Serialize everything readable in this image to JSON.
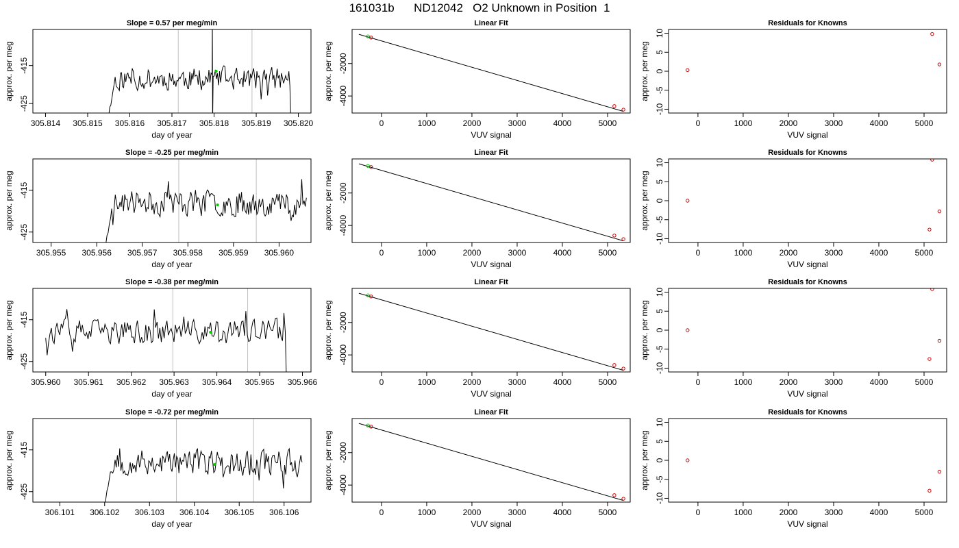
{
  "title": "161031b      ND12042   O2 Unknown in Position  1",
  "colors": {
    "trace": "#000000",
    "vline": "#bebebe",
    "green": "#00cc00",
    "red": "#cc0000",
    "fitline": "#000000"
  },
  "chart_data": [
    {
      "type": "line",
      "panel": "timeseries-1",
      "title": "Slope =  0.57  per meg/min",
      "xlabel": "day of year",
      "ylabel": "approx. per meg",
      "xlim": [
        305.8137,
        305.8203
      ],
      "ylim": [
        -427.5,
        -405.5
      ],
      "xticks": [
        305.814,
        305.815,
        305.816,
        305.817,
        305.818,
        305.819,
        305.82
      ],
      "xtick_labels": [
        "305.814",
        "305.815",
        "305.816",
        "305.817",
        "305.818",
        "305.819",
        "305.820"
      ],
      "yticks": [
        -415,
        -425
      ],
      "ytick_labels": [
        "-415",
        "-425"
      ],
      "vlines": [
        305.81715,
        305.8189
      ],
      "trace": {
        "x_start": 305.8155,
        "x_end": 305.8198,
        "base": -418.5,
        "amp": 1.5,
        "seed": 11,
        "start_from": -428,
        "end_to": -428,
        "spike_at": 305.81795,
        "spike_to": [
          -402,
          -430
        ]
      },
      "green_point": {
        "x": 305.81805,
        "y": -416.5
      }
    },
    {
      "type": "scatter",
      "panel": "fit-1",
      "title": "Linear Fit",
      "xlabel": "VUV signal",
      "ylabel": "approx. per meg",
      "xlim": [
        -650,
        5500
      ],
      "ylim": [
        -5050,
        100
      ],
      "xticks": [
        0,
        1000,
        2000,
        3000,
        4000,
        5000
      ],
      "xtick_labels": [
        "0",
        "1000",
        "2000",
        "3000",
        "4000",
        "5000"
      ],
      "yticks": [
        -2000,
        -4000
      ],
      "ytick_labels": [
        "-2000",
        "-4000"
      ],
      "fit_line": {
        "x": [
          -500,
          5350
        ],
        "y": [
          -200,
          -4950
        ]
      },
      "points_red": [
        {
          "x": -230,
          "y": -400
        },
        {
          "x": 5150,
          "y": -4620
        },
        {
          "x": 5350,
          "y": -4840
        }
      ],
      "points_green": [
        {
          "x": -300,
          "y": -330
        }
      ]
    },
    {
      "type": "scatter",
      "panel": "resid-1",
      "title": "Residuals for Knowns",
      "xlabel": "VUV signal",
      "ylabel": "approx. per meg",
      "xlim": [
        -650,
        5500
      ],
      "ylim": [
        -11,
        11
      ],
      "xticks": [
        0,
        1000,
        2000,
        3000,
        4000,
        5000
      ],
      "xtick_labels": [
        "0",
        "1000",
        "2000",
        "3000",
        "4000",
        "5000"
      ],
      "yticks": [
        10,
        5,
        0,
        -5,
        -10
      ],
      "ytick_labels": [
        "10",
        "5",
        "0",
        "-5",
        "-10"
      ],
      "points_red": [
        {
          "x": -230,
          "y": 0.3
        },
        {
          "x": 5180,
          "y": 9.8
        },
        {
          "x": 5340,
          "y": 1.8
        }
      ]
    },
    {
      "type": "line",
      "panel": "timeseries-2",
      "title": "Slope =  -0.25  per meg/min",
      "xlabel": "day of year",
      "ylabel": "approx. per meg",
      "xlim": [
        305.9546,
        305.9607
      ],
      "ylim": [
        -427.5,
        -407.5
      ],
      "xticks": [
        305.955,
        305.956,
        305.957,
        305.958,
        305.959,
        305.96
      ],
      "xtick_labels": [
        "305.955",
        "305.956",
        "305.957",
        "305.958",
        "305.959",
        "305.960"
      ],
      "yticks": [
        -415,
        -425
      ],
      "ytick_labels": [
        "-415",
        "-425"
      ],
      "vlines": [
        305.9578,
        305.9595
      ],
      "trace": {
        "x_start": 305.9562,
        "x_end": 305.9606,
        "base": -418,
        "amp": 1.6,
        "seed": 23,
        "start_from": -428,
        "end_to": null,
        "spike_at": null
      },
      "green_point": {
        "x": 305.95865,
        "y": -418.5
      }
    },
    {
      "type": "scatter",
      "panel": "fit-2",
      "title": "Linear Fit",
      "xlabel": "VUV signal",
      "ylabel": "approx. per meg",
      "xlim": [
        -650,
        5500
      ],
      "ylim": [
        -5050,
        100
      ],
      "xticks": [
        0,
        1000,
        2000,
        3000,
        4000,
        5000
      ],
      "xtick_labels": [
        "0",
        "1000",
        "2000",
        "3000",
        "4000",
        "5000"
      ],
      "yticks": [
        -2000,
        -4000
      ],
      "ytick_labels": [
        "-2000",
        "-4000"
      ],
      "fit_line": {
        "x": [
          -500,
          5350
        ],
        "y": [
          -200,
          -4950
        ]
      },
      "points_red": [
        {
          "x": -230,
          "y": -400
        },
        {
          "x": 5150,
          "y": -4620
        },
        {
          "x": 5350,
          "y": -4840
        }
      ],
      "points_green": [
        {
          "x": -300,
          "y": -330
        }
      ]
    },
    {
      "type": "scatter",
      "panel": "resid-2",
      "title": "Residuals for Knowns",
      "xlabel": "VUV signal",
      "ylabel": "approx. per meg",
      "xlim": [
        -650,
        5500
      ],
      "ylim": [
        -11,
        11
      ],
      "xticks": [
        0,
        1000,
        2000,
        3000,
        4000,
        5000
      ],
      "xtick_labels": [
        "0",
        "1000",
        "2000",
        "3000",
        "4000",
        "5000"
      ],
      "yticks": [
        10,
        5,
        0,
        -5,
        -10
      ],
      "ytick_labels": [
        "10",
        "5",
        "0",
        "-5",
        "-10"
      ],
      "points_red": [
        {
          "x": -230,
          "y": 0.0
        },
        {
          "x": 5180,
          "y": 10.8
        },
        {
          "x": 5340,
          "y": -2.8
        },
        {
          "x": 5120,
          "y": -7.6
        }
      ]
    },
    {
      "type": "line",
      "panel": "timeseries-3",
      "title": "Slope =  -0.38  per meg/min",
      "xlabel": "day of year",
      "ylabel": "approx. per meg",
      "xlim": [
        305.9597,
        305.9662
      ],
      "ylim": [
        -427.5,
        -407.5
      ],
      "xticks": [
        305.96,
        305.961,
        305.962,
        305.963,
        305.964,
        305.965,
        305.966
      ],
      "xtick_labels": [
        "305.960",
        "305.961",
        "305.962",
        "305.963",
        "305.964",
        "305.965",
        "305.966"
      ],
      "yticks": [
        -415,
        -425
      ],
      "ytick_labels": [
        "-415",
        "-425"
      ],
      "vlines": [
        305.96297,
        305.96472
      ],
      "trace": {
        "x_start": 305.96,
        "x_end": 305.9656,
        "base": -418,
        "amp": 1.5,
        "seed": 37,
        "start_from": null,
        "end_to": -428,
        "spike_at": null
      },
      "green_point": {
        "x": 305.96385,
        "y": -418
      }
    },
    {
      "type": "scatter",
      "panel": "fit-3",
      "title": "Linear Fit",
      "xlabel": "VUV signal",
      "ylabel": "approx. per meg",
      "xlim": [
        -650,
        5500
      ],
      "ylim": [
        -5050,
        100
      ],
      "xticks": [
        0,
        1000,
        2000,
        3000,
        4000,
        5000
      ],
      "xtick_labels": [
        "0",
        "1000",
        "2000",
        "3000",
        "4000",
        "5000"
      ],
      "yticks": [
        -2000,
        -4000
      ],
      "ytick_labels": [
        "-2000",
        "-4000"
      ],
      "fit_line": {
        "x": [
          -500,
          5350
        ],
        "y": [
          -200,
          -4950
        ]
      },
      "points_red": [
        {
          "x": -230,
          "y": -400
        },
        {
          "x": 5150,
          "y": -4620
        },
        {
          "x": 5350,
          "y": -4840
        }
      ],
      "points_green": [
        {
          "x": -300,
          "y": -330
        }
      ]
    },
    {
      "type": "scatter",
      "panel": "resid-3",
      "title": "Residuals for Knowns",
      "xlabel": "VUV signal",
      "ylabel": "approx. per meg",
      "xlim": [
        -650,
        5500
      ],
      "ylim": [
        -11,
        11
      ],
      "xticks": [
        0,
        1000,
        2000,
        3000,
        4000,
        5000
      ],
      "xtick_labels": [
        "0",
        "1000",
        "2000",
        "3000",
        "4000",
        "5000"
      ],
      "yticks": [
        10,
        5,
        0,
        -5,
        -10
      ],
      "ytick_labels": [
        "10",
        "5",
        "0",
        "-5",
        "-10"
      ],
      "points_red": [
        {
          "x": -230,
          "y": 0.0
        },
        {
          "x": 5180,
          "y": 10.8
        },
        {
          "x": 5340,
          "y": -2.8
        },
        {
          "x": 5120,
          "y": -7.6
        }
      ]
    },
    {
      "type": "line",
      "panel": "timeseries-4",
      "title": "Slope =  -0.72  per meg/min",
      "xlabel": "day of year",
      "ylabel": "approx. per meg",
      "xlim": [
        306.1004,
        306.1066
      ],
      "ylim": [
        -427.5,
        -407.5
      ],
      "xticks": [
        306.101,
        306.102,
        306.103,
        306.104,
        306.105,
        306.106
      ],
      "xtick_labels": [
        "306.101",
        "306.102",
        "306.103",
        "306.104",
        "306.105",
        "306.106"
      ],
      "yticks": [
        -415,
        -425
      ],
      "ytick_labels": [
        "-415",
        "-425"
      ],
      "vlines": [
        306.1036,
        306.10532
      ],
      "trace": {
        "x_start": 306.102,
        "x_end": 306.1064,
        "base": -418,
        "amp": 1.6,
        "seed": 53,
        "start_from": -428,
        "end_to": null,
        "spike_at": null
      },
      "green_point": {
        "x": 306.10445,
        "y": -418.5
      }
    },
    {
      "type": "scatter",
      "panel": "fit-4",
      "title": "Linear Fit",
      "xlabel": "VUV signal",
      "ylabel": "approx. per meg",
      "xlim": [
        -650,
        5500
      ],
      "ylim": [
        -5050,
        100
      ],
      "xticks": [
        0,
        1000,
        2000,
        3000,
        4000,
        5000
      ],
      "xtick_labels": [
        "0",
        "1000",
        "2000",
        "3000",
        "4000",
        "5000"
      ],
      "yticks": [
        -2000,
        -4000
      ],
      "ytick_labels": [
        "-2000",
        "-4000"
      ],
      "fit_line": {
        "x": [
          -500,
          5350
        ],
        "y": [
          -200,
          -4950
        ]
      },
      "points_red": [
        {
          "x": -230,
          "y": -400
        },
        {
          "x": 5150,
          "y": -4620
        },
        {
          "x": 5350,
          "y": -4840
        }
      ],
      "points_green": [
        {
          "x": -300,
          "y": -330
        }
      ]
    },
    {
      "type": "scatter",
      "panel": "resid-4",
      "title": "Residuals for Knowns",
      "xlabel": "VUV signal",
      "ylabel": "approx. per meg",
      "xlim": [
        -650,
        5500
      ],
      "ylim": [
        -11,
        11
      ],
      "xticks": [
        0,
        1000,
        2000,
        3000,
        4000,
        5000
      ],
      "xtick_labels": [
        "0",
        "1000",
        "2000",
        "3000",
        "4000",
        "5000"
      ],
      "yticks": [
        10,
        5,
        0,
        -5,
        -10
      ],
      "ytick_labels": [
        "10",
        "5",
        "0",
        "-5",
        "-10"
      ],
      "points_red": [
        {
          "x": -230,
          "y": 0.0
        },
        {
          "x": 5120,
          "y": -8.0
        },
        {
          "x": 5340,
          "y": -3.0
        }
      ]
    }
  ]
}
